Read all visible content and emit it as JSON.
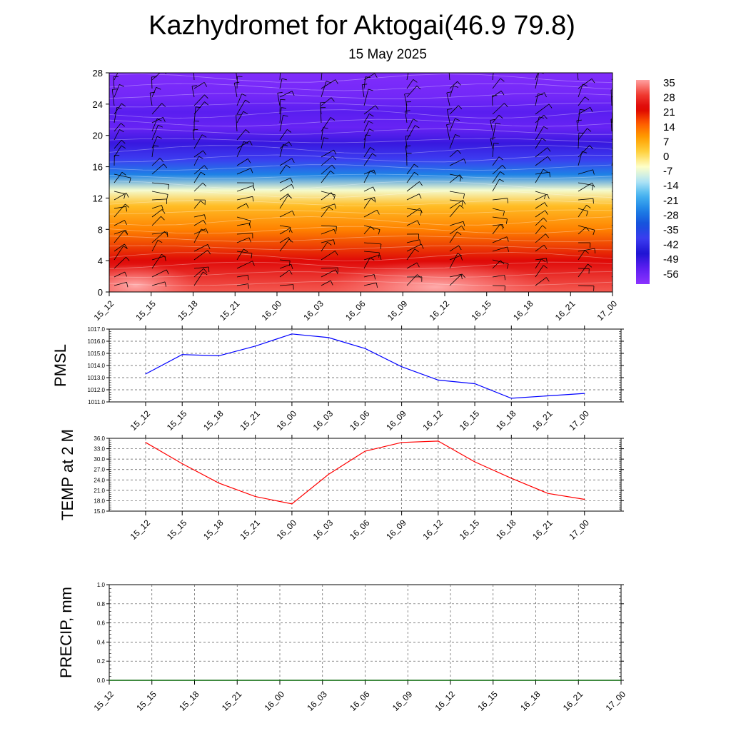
{
  "header": {
    "title": "Kazhydromet for Aktogai(46.9 79.8)",
    "date": "15 May 2025"
  },
  "chart_data": [
    {
      "type": "heatmap",
      "name": "cross-section",
      "x_ticks": [
        "15_12",
        "15_15",
        "15_18",
        "15_21",
        "16_00",
        "16_03",
        "16_06",
        "16_09",
        "16_12",
        "16_15",
        "16_18",
        "16_21",
        "17_00"
      ],
      "y_ticks": [
        0,
        4,
        8,
        12,
        16,
        20,
        24,
        28
      ],
      "ylim": [
        0,
        28
      ],
      "color_levels": [
        35,
        28,
        21,
        14,
        7,
        0,
        -7,
        -14,
        -21,
        -28,
        -35,
        -42,
        -49,
        -56
      ],
      "temperature_profile": [
        {
          "height": 0,
          "value": 30
        },
        {
          "height": 4,
          "value": 22
        },
        {
          "height": 8,
          "value": 10
        },
        {
          "height": 11,
          "value": 3
        },
        {
          "height": 13,
          "value": -8
        },
        {
          "height": 15,
          "value": -28
        },
        {
          "height": 17,
          "value": -42
        },
        {
          "height": 19,
          "value": -52
        },
        {
          "height": 21,
          "value": -58
        },
        {
          "height": 23,
          "value": -56
        },
        {
          "height": 25,
          "value": -60
        },
        {
          "height": 28,
          "value": -62
        }
      ],
      "wind_barbs": true
    },
    {
      "type": "line",
      "name": "pmsl",
      "ylabel": "PMSL",
      "ylim": [
        1011,
        1017
      ],
      "y_ticks": [
        "1011.0",
        "1012.0",
        "1013.0",
        "1014.0",
        "1015.0",
        "1016.0",
        "1017.0"
      ],
      "categories": [
        "15_12",
        "15_15",
        "15_18",
        "15_21",
        "16_00",
        "16_03",
        "16_06",
        "16_09",
        "16_12",
        "16_15",
        "16_18",
        "16_21",
        "17_00"
      ],
      "values": [
        1013.3,
        1014.9,
        1014.8,
        1015.6,
        1016.6,
        1016.3,
        1015.4,
        1013.9,
        1012.8,
        1012.5,
        1011.3,
        1011.5,
        1011.7
      ],
      "color": "#0000ff",
      "grid": true
    },
    {
      "type": "line",
      "name": "temp",
      "ylabel": "TEMP at 2 M",
      "ylim": [
        15,
        36
      ],
      "y_ticks": [
        "15.0",
        "18.0",
        "21.0",
        "24.0",
        "27.0",
        "30.0",
        "33.0",
        "36.0"
      ],
      "categories": [
        "15_12",
        "15_15",
        "15_18",
        "15_21",
        "16_00",
        "16_03",
        "16_06",
        "16_09",
        "16_12",
        "16_15",
        "16_18",
        "16_21",
        "17_00"
      ],
      "values": [
        34.8,
        28.7,
        23.1,
        19.2,
        17.1,
        25.6,
        32.3,
        34.8,
        35.2,
        29.2,
        24.5,
        20.1,
        18.4
      ],
      "color": "#ff0000",
      "grid": true
    },
    {
      "type": "line",
      "name": "precip",
      "ylabel": "PRECIP, mm",
      "ylim": [
        0,
        1
      ],
      "y_ticks": [
        "0.0",
        "0.2",
        "0.4",
        "0.6",
        "0.8",
        "1.0"
      ],
      "categories": [
        "15_12",
        "15_15",
        "15_18",
        "15_21",
        "16_00",
        "16_03",
        "16_06",
        "16_09",
        "16_12",
        "16_15",
        "16_18",
        "16_21",
        "17_00"
      ],
      "values": [
        0,
        0,
        0,
        0,
        0,
        0,
        0,
        0,
        0,
        0,
        0,
        0,
        0
      ],
      "color": "#006400",
      "grid": true
    }
  ]
}
